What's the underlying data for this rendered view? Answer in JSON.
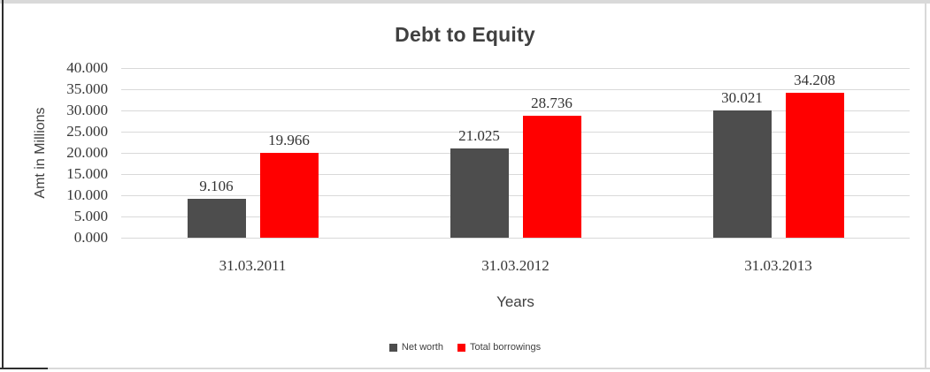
{
  "chart_data": {
    "type": "bar",
    "title": "Debt to Equity",
    "xlabel": "Years",
    "ylabel": "Amt in Millions",
    "categories": [
      "31.03.2011",
      "31.03.2012",
      "31.03.2013"
    ],
    "series": [
      {
        "name": "Net worth",
        "color": "#4D4D4D",
        "values": [
          9.106,
          21.025,
          30.021
        ]
      },
      {
        "name": "Total borrowings",
        "color": "#FF0000",
        "values": [
          19.966,
          28.736,
          34.208
        ]
      }
    ],
    "value_labels": [
      [
        "9.106",
        "21.025",
        "30.021"
      ],
      [
        "19.966",
        "28.736",
        "34.208"
      ]
    ],
    "ylim": [
      0,
      40
    ],
    "ytick_step": 5,
    "ytick_labels": [
      "0.000",
      "5.000",
      "10.000",
      "15.000",
      "20.000",
      "25.000",
      "30.000",
      "35.000",
      "40.000"
    ],
    "grid": true,
    "legend_position": "bottom-center"
  },
  "colors": {
    "gridline": "#D9D9D9",
    "title_text": "#404040",
    "label_text": "#333333",
    "frame_gray": "#D9D9D9",
    "frame_dark": "#2E2E2E"
  }
}
